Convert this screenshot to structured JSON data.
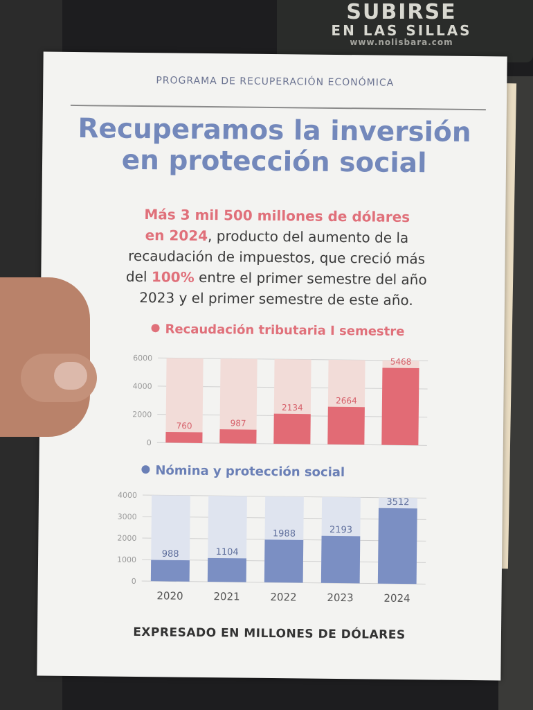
{
  "background_sign": {
    "line1": "SUBIRSE",
    "line2": "EN LAS SILLAS",
    "line3": "www.nolisbara.com"
  },
  "kicker": "PROGRAMA DE RECUPERACIÓN ECONÓMICA",
  "title_line1": "Recuperamos la inversión",
  "title_line2": "en protección social",
  "paragraph": {
    "hl1": "Más 3 mil 500 millones de dólares",
    "hl2": "en 2024",
    "t1": ", producto del aumento de la",
    "t2": "recaudación de impuestos, que creció más",
    "t3_a": "del ",
    "hl3": "100%",
    "t3_b": " entre el primer semestre del año",
    "t4": "2023 y el primer semestre de este año."
  },
  "footer": "EXPRESADO EN MILLONES DE DÓLARES",
  "colors": {
    "red": "#e26b75",
    "red_light": "#f2dcd8",
    "blue": "#7b8fc3",
    "blue_light": "#dfe4ef"
  },
  "chart_data": [
    {
      "type": "bar",
      "title": "Recaudación tributaria I semestre",
      "categories": [
        "2020",
        "2021",
        "2022",
        "2023",
        "2024"
      ],
      "values": [
        760,
        987,
        2134,
        2664,
        5468
      ],
      "ylim": [
        0,
        6000
      ],
      "yticks": [
        0,
        2000,
        4000,
        6000
      ],
      "ytick_labels": [
        "0",
        "2000",
        "4000",
        "6000"
      ],
      "xticks_shown": false,
      "grid": true
    },
    {
      "type": "bar",
      "title": "Nómina y protección social",
      "categories": [
        "2020",
        "2021",
        "2022",
        "2023",
        "2024"
      ],
      "values": [
        988,
        1104,
        1988,
        2193,
        3512
      ],
      "ylim": [
        0,
        4000
      ],
      "yticks": [
        0,
        1000,
        2000,
        3000,
        4000
      ],
      "ytick_labels": [
        "0",
        "1000",
        "2000",
        "3000",
        "4000"
      ],
      "xticks_shown": true,
      "grid": true
    }
  ]
}
